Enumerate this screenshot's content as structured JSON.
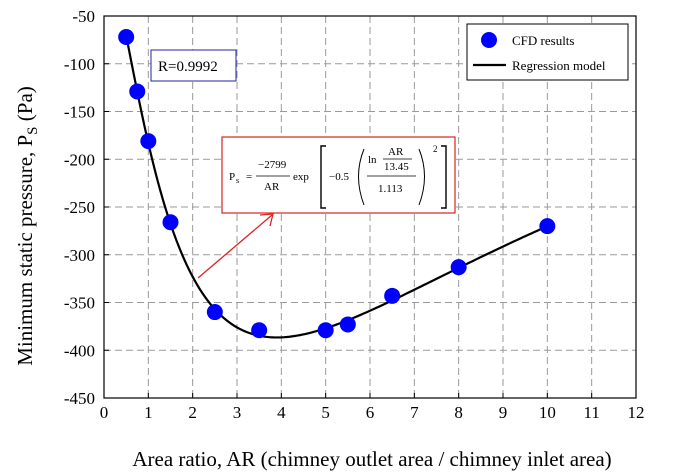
{
  "chart_data": {
    "type": "scatter",
    "xlabel": "Area ratio, AR (chimney outlet area / chimney inlet area)",
    "ylabel_main": "Minimum static pressure, P",
    "ylabel_sub": "S",
    "ylabel_unit": " (Pa)",
    "xlim": [
      0,
      12
    ],
    "ylim": [
      -450,
      -50
    ],
    "xticks": [
      0,
      1,
      2,
      3,
      4,
      5,
      6,
      7,
      8,
      9,
      10,
      11,
      12
    ],
    "yticks": [
      -50,
      -100,
      -150,
      -200,
      -250,
      -300,
      -350,
      -400,
      -450
    ],
    "grid": true,
    "legend_position": "top-right",
    "series": [
      {
        "name": "CFD results",
        "kind": "scatter",
        "color": "#0000ff",
        "x": [
          0.5,
          0.75,
          1.0,
          1.5,
          2.5,
          3.5,
          5.0,
          5.5,
          6.5,
          8.0,
          10.0
        ],
        "y": [
          -72,
          -129,
          -181,
          -266,
          -360,
          -379,
          -379,
          -373,
          -343,
          -313,
          -270
        ]
      },
      {
        "name": "Regression model",
        "kind": "line",
        "color": "#000000",
        "model": {
          "a": -2799,
          "b": 13.45,
          "c": 1.113,
          "x_from": 0.5,
          "x_to": 10.0
        }
      }
    ],
    "annotations": {
      "r_label": "R=0.9992",
      "r_color": "#2222aa",
      "equation_color": "#dd2222",
      "equation": {
        "lhs": "P",
        "lhs_sub": "s",
        "equals": "=",
        "num": "−2799",
        "den": "AR",
        "exp": "exp",
        "coef": "−0.5",
        "ln": "ln",
        "inner_num": "AR",
        "inner_den": "13.45",
        "outer_den": "1.113",
        "power": "2"
      }
    }
  }
}
